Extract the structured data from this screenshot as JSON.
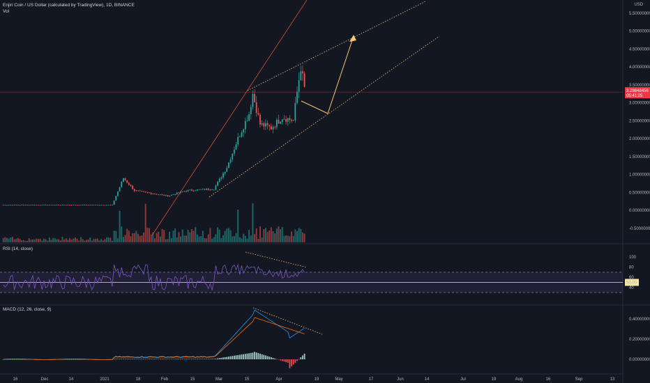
{
  "header": {
    "symbol": "Enjin Coin / US Dollar (calculated by TradingView), 1D, BINANCE",
    "volume_label": "Vol",
    "currency": "USD"
  },
  "rsi_label": "RSI (14, close)",
  "macd_label": "MACD (12, 26, close, 9)",
  "price_tag": {
    "price": "3.29848456",
    "countdown": "05:41:25",
    "color": "#f23645"
  },
  "rsi_mid_tag": "50.00",
  "colors": {
    "up": "#26a69a",
    "down": "#ef5350",
    "macd": "#2196f3",
    "signal": "#ff6d00",
    "rsi": "#7e57c2",
    "projection": "#f5c76e"
  },
  "chart_data": [
    {
      "type": "candlestick",
      "title": "Enjin Coin / US Dollar (calculated by TradingView), 1D, BINANCE",
      "x_ticks": [
        "16",
        "Dec",
        "14",
        "2021",
        "18",
        "Feb",
        "15",
        "Mar",
        "15",
        "Apr",
        "19",
        "May",
        "17",
        "Jun",
        "14",
        "Jul",
        "19",
        "Aug",
        "16",
        "Sep",
        "13"
      ],
      "y_ticks": [
        "5.50000000",
        "5.00000000",
        "4.50000000",
        "4.00000000",
        "3.50000000",
        "3.00000000",
        "2.50000000",
        "2.00000000",
        "1.50000000",
        "1.00000000",
        "0.50000000",
        "0.00000000",
        "-0.50000000"
      ],
      "ylim": [
        -0.5,
        5.5
      ],
      "last_price": 3.29848456,
      "key_points": [
        {
          "date": "Nov 2020",
          "close": 0.15
        },
        {
          "date": "mid Jan 2021",
          "close": 0.15
        },
        {
          "date": "late Jan 2021",
          "close": 0.6
        },
        {
          "date": "mid Feb 2021",
          "close": 0.5
        },
        {
          "date": "late Feb 2021",
          "close": 1.2
        },
        {
          "date": "mid Mar 2021",
          "close": 3.2
        },
        {
          "date": "late Mar 2021",
          "close": 2.3
        },
        {
          "date": "early Apr 2021",
          "high": 4.0,
          "close": 3.3
        }
      ]
    },
    {
      "type": "line",
      "title": "RSI (14, close)",
      "y_ticks": [
        "100",
        "80",
        "60",
        "40"
      ],
      "levels": [
        70,
        50,
        30
      ],
      "ylim": [
        0,
        100
      ],
      "approx_recent_values": [
        72,
        80,
        75,
        68,
        66,
        65,
        70
      ]
    },
    {
      "type": "line",
      "title": "MACD (12, 26, close, 9)",
      "y_ticks": [
        "0.40000000",
        "0.20000000",
        "0.00000000"
      ],
      "ylim": [
        -0.1,
        0.55
      ],
      "peaks": {
        "macd_max": 0.5,
        "signal_max": 0.42
      },
      "last": {
        "macd": 0.3,
        "signal": 0.3
      }
    }
  ]
}
